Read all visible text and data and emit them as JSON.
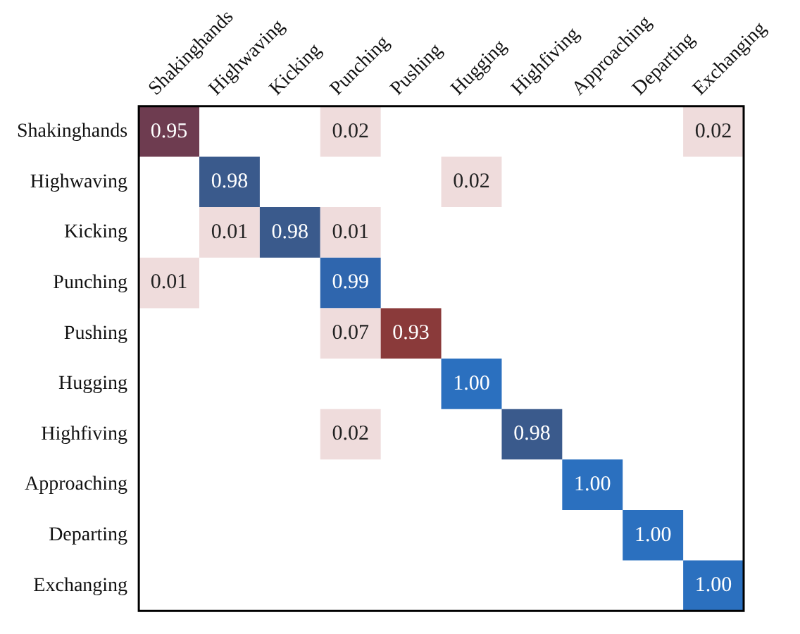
{
  "chart_data": {
    "type": "heatmap",
    "cell_labels": [
      [
        "0.95",
        null,
        null,
        "0.02",
        null,
        null,
        null,
        null,
        null,
        "0.02"
      ],
      [
        null,
        "0.98",
        null,
        null,
        null,
        "0.02",
        null,
        null,
        null,
        null
      ],
      [
        null,
        "0.01",
        "0.98",
        "0.01",
        null,
        null,
        null,
        null,
        null,
        null
      ],
      [
        "0.01",
        null,
        null,
        "0.99",
        null,
        null,
        null,
        null,
        null,
        null
      ],
      [
        null,
        null,
        null,
        "0.07",
        "0.93",
        null,
        null,
        null,
        null,
        null
      ],
      [
        null,
        null,
        null,
        null,
        null,
        "1.00",
        null,
        null,
        null,
        null
      ],
      [
        null,
        null,
        null,
        "0.02",
        null,
        null,
        "0.98",
        null,
        null,
        null
      ],
      [
        null,
        null,
        null,
        null,
        null,
        null,
        null,
        "1.00",
        null,
        null
      ],
      [
        null,
        null,
        null,
        null,
        null,
        null,
        null,
        null,
        "1.00",
        null
      ],
      [
        null,
        null,
        null,
        null,
        null,
        null,
        null,
        null,
        null,
        "1.00"
      ]
    ],
    "categories": [
      "Shakinghands",
      "Highwaving",
      "Kicking",
      "Punching",
      "Pushing",
      "Hugging",
      "Highfiving",
      "Approaching",
      "Departing",
      "Exchanging"
    ],
    "y_categories": [
      "Shakinghands",
      "Highwaving",
      "Kicking",
      "Punching",
      "Pushing",
      "Hugging",
      "Highfiving",
      "Approaching",
      "Departing",
      "Exchanging"
    ],
    "cells": [
      [
        0.95,
        null,
        null,
        0.02,
        null,
        null,
        null,
        null,
        null,
        0.02
      ],
      [
        null,
        0.98,
        null,
        null,
        null,
        0.02,
        null,
        null,
        null,
        null
      ],
      [
        null,
        0.01,
        0.98,
        0.01,
        null,
        null,
        null,
        null,
        null,
        null
      ],
      [
        0.01,
        null,
        null,
        0.99,
        null,
        null,
        null,
        null,
        null,
        null
      ],
      [
        null,
        null,
        null,
        0.07,
        0.93,
        null,
        null,
        null,
        null,
        null
      ],
      [
        null,
        null,
        null,
        null,
        null,
        1.0,
        null,
        null,
        null,
        null
      ],
      [
        null,
        null,
        null,
        0.02,
        null,
        null,
        0.98,
        null,
        null,
        null
      ],
      [
        null,
        null,
        null,
        null,
        null,
        null,
        null,
        1.0,
        null,
        null
      ],
      [
        null,
        null,
        null,
        null,
        null,
        null,
        null,
        null,
        1.0,
        null
      ],
      [
        null,
        null,
        null,
        null,
        null,
        null,
        null,
        null,
        null,
        1.0
      ]
    ],
    "colors": [
      [
        "#6e3c50",
        null,
        null,
        "#efdcdc",
        null,
        null,
        null,
        null,
        null,
        "#efdcdc"
      ],
      [
        null,
        "#3a5a8c",
        null,
        null,
        null,
        "#efdcdc",
        null,
        null,
        null,
        null
      ],
      [
        null,
        "#efdcdc",
        "#3a5a8c",
        "#efdcdc",
        null,
        null,
        null,
        null,
        null,
        null
      ],
      [
        "#efdcdc",
        null,
        null,
        "#2f66ae",
        null,
        null,
        null,
        null,
        null,
        null
      ],
      [
        null,
        null,
        null,
        "#efdcdc",
        "#8a3a3a",
        null,
        null,
        null,
        null,
        null
      ],
      [
        null,
        null,
        null,
        null,
        null,
        "#2b70bf",
        null,
        null,
        null,
        null
      ],
      [
        null,
        null,
        null,
        "#efdcdc",
        null,
        null,
        "#3a5a8c",
        null,
        null,
        null
      ],
      [
        null,
        null,
        null,
        null,
        null,
        null,
        null,
        "#2b70bf",
        null,
        null
      ],
      [
        null,
        null,
        null,
        null,
        null,
        null,
        null,
        null,
        "#2b70bf",
        null
      ],
      [
        null,
        null,
        null,
        null,
        null,
        null,
        null,
        null,
        null,
        "#2b70bf"
      ]
    ]
  }
}
